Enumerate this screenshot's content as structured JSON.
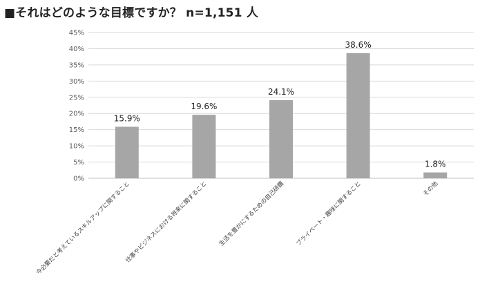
{
  "title": "■それはどのような目標ですか？ n=1,151 人",
  "chart_data": {
    "type": "bar",
    "title": "■それはどのような目標ですか？ n=1,151 人",
    "xlabel": "",
    "ylabel": "",
    "categories": [
      "今必要だと考えているスキルアップに関すること",
      "仕事やビジネスにおける将来に関すること",
      "生活を豊かにするための自己研鑽",
      "プライベート・趣味に関すること",
      "その他"
    ],
    "values": [
      15.9,
      19.6,
      24.1,
      38.6,
      1.8
    ],
    "value_labels": [
      "15.9%",
      "19.6%",
      "24.1%",
      "38.6%",
      "1.8%"
    ],
    "y_ticks": [
      "0%",
      "5%",
      "10%",
      "15%",
      "20%",
      "25%",
      "30%",
      "35%",
      "40%",
      "45%"
    ],
    "ylim": [
      0,
      45
    ],
    "grid": true,
    "legend": "none",
    "bar_color": "#a6a6a6",
    "grid_color": "#d9d9d9"
  }
}
